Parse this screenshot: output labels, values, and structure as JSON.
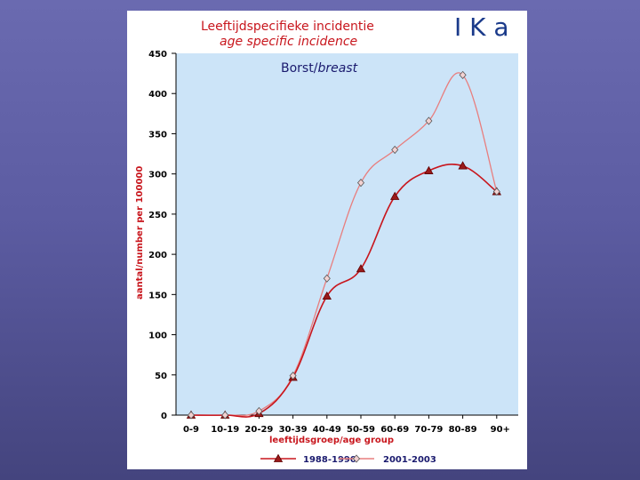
{
  "logo": {
    "text": "I K a",
    "color": "#1a3a8a"
  },
  "chart_data": {
    "type": "line",
    "title": "Leeftijdspecifieke incidentie",
    "subtitle": "age specific incidence",
    "inner_title": "Borst/breast",
    "inner_title_part1": "Borst/",
    "inner_title_part2": "breast",
    "xlabel": "leeftijdsgroep/age group",
    "ylabel": "aantal/number per 100000",
    "ylim": [
      0,
      450
    ],
    "yticks": [
      0,
      50,
      100,
      150,
      200,
      250,
      300,
      350,
      400,
      450
    ],
    "categories": [
      "0-9",
      "10-19",
      "20-29",
      "30-39",
      "40-49",
      "50-59",
      "60-69",
      "70-79",
      "80-89",
      "90+"
    ],
    "grid": false,
    "legend_position": "bottom",
    "plot_background": "#cce4f8",
    "series": [
      {
        "name": "1988-1990",
        "marker": "triangle",
        "color": "#c8161d",
        "values": [
          0,
          0,
          2,
          47,
          148,
          182,
          272,
          304,
          310,
          278
        ]
      },
      {
        "name": "2001-2003",
        "marker": "diamond",
        "color": "#e87e7e",
        "values": [
          0,
          0,
          5,
          49,
          170,
          289,
          330,
          366,
          423,
          278
        ]
      }
    ]
  }
}
